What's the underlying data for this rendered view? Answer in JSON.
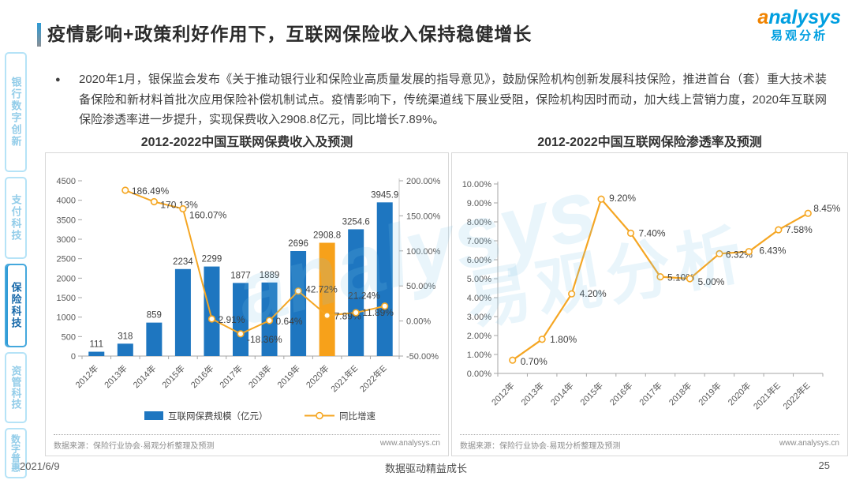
{
  "header": {
    "title": "疫情影响+政策利好作用下，互联网保险收入保持稳健增长",
    "logo": {
      "brand_prefix": "a",
      "brand_rest": "nalysys",
      "brand_cn": "易观分析"
    }
  },
  "sidebar": {
    "items": [
      {
        "label": "银行数字创新",
        "active": false
      },
      {
        "label": "支付科技",
        "active": false
      },
      {
        "label": "保险科技",
        "active": true
      },
      {
        "label": "资管科技",
        "active": false
      },
      {
        "label": "数字普惠",
        "active": false
      }
    ]
  },
  "summary": {
    "bullet": "●",
    "text": "2020年1月，银保监会发布《关于推动银行业和保险业高质量发展的指导意见》，鼓励保险机构创新发展科技保险，推进首台（套）重大技术装备保险和新材料首批次应用保险补偿机制试点。疫情影响下，传统渠道线下展业受阻，保险机构因时而动，加大线上营销力度，2020年互联网保险渗透率进一步提升，实现保费收入2908.8亿元，同比增长7.89%。"
  },
  "watermark": {
    "latin": "analysys",
    "cn": "易观分析"
  },
  "chart_data": [
    {
      "type": "bar",
      "title": "2012-2022中国互联网保费收入及预测",
      "categories": [
        "2012年",
        "2013年",
        "2014年",
        "2015年",
        "2016年",
        "2017年",
        "2018年",
        "2019年",
        "2020年",
        "2021年E",
        "2022年E"
      ],
      "series": [
        {
          "name": "互联网保费规模（亿元）",
          "type": "bar",
          "values": [
            111,
            318,
            859,
            2234,
            2299,
            1877,
            1889,
            2696,
            2908.8,
            3254.6,
            3945.9
          ],
          "labels": [
            "111",
            "318",
            "859",
            "2234",
            "2299",
            "1877",
            "1889",
            "2696",
            "2908.8",
            "3254.6",
            "3945.9"
          ],
          "highlight_index": 8
        },
        {
          "name": "同比增速",
          "type": "line",
          "axis": "right",
          "values": [
            null,
            186.49,
            170.13,
            160.07,
            2.91,
            -18.36,
            0.64,
            42.72,
            7.89,
            11.89,
            21.24
          ],
          "labels": [
            null,
            "186.49%",
            "170.13%",
            "160.07%",
            "2.91%",
            "-18.36%",
            "0.64%",
            "42.72%",
            "7.89%",
            "11.89%",
            "21.24%"
          ]
        }
      ],
      "y_left": {
        "min": 0,
        "max": 4500,
        "step": 500
      },
      "y_right": {
        "min": -50,
        "max": 200,
        "step": 50,
        "suffix": "%"
      },
      "legend_position": "bottom",
      "grid": false,
      "colors": {
        "bar": "#1E76C0",
        "highlight": "#F7A11A",
        "line": "#F5A623"
      },
      "source": "数据来源：保险行业协会·易观分析整理及预测",
      "site": "www.analysys.cn"
    },
    {
      "type": "line",
      "title": "2012-2022中国互联网保险渗透率及预测",
      "categories": [
        "2012年",
        "2013年",
        "2014年",
        "2015年",
        "2016年",
        "2017年",
        "2018年",
        "2019年",
        "2020年",
        "2021年E",
        "2022年E"
      ],
      "values": [
        0.7,
        1.8,
        4.2,
        9.2,
        7.4,
        5.1,
        5.0,
        6.32,
        6.43,
        7.58,
        8.45
      ],
      "labels": [
        "0.70%",
        "1.80%",
        "4.20%",
        "9.20%",
        "7.40%",
        "5.10%",
        "5.00%",
        "6.32%",
        "6.43%",
        "7.58%",
        "8.45%"
      ],
      "ylim": [
        0,
        10
      ],
      "ystep": 1,
      "suffix": "%",
      "grid": false,
      "colors": {
        "line": "#F5A623"
      },
      "source": "数据来源：保险行业协会·易观分析整理及预测",
      "site": "www.analysys.cn"
    }
  ],
  "footer": {
    "date": "2021/6/9",
    "slogan": "数据驱动精益成长",
    "page": "25"
  }
}
